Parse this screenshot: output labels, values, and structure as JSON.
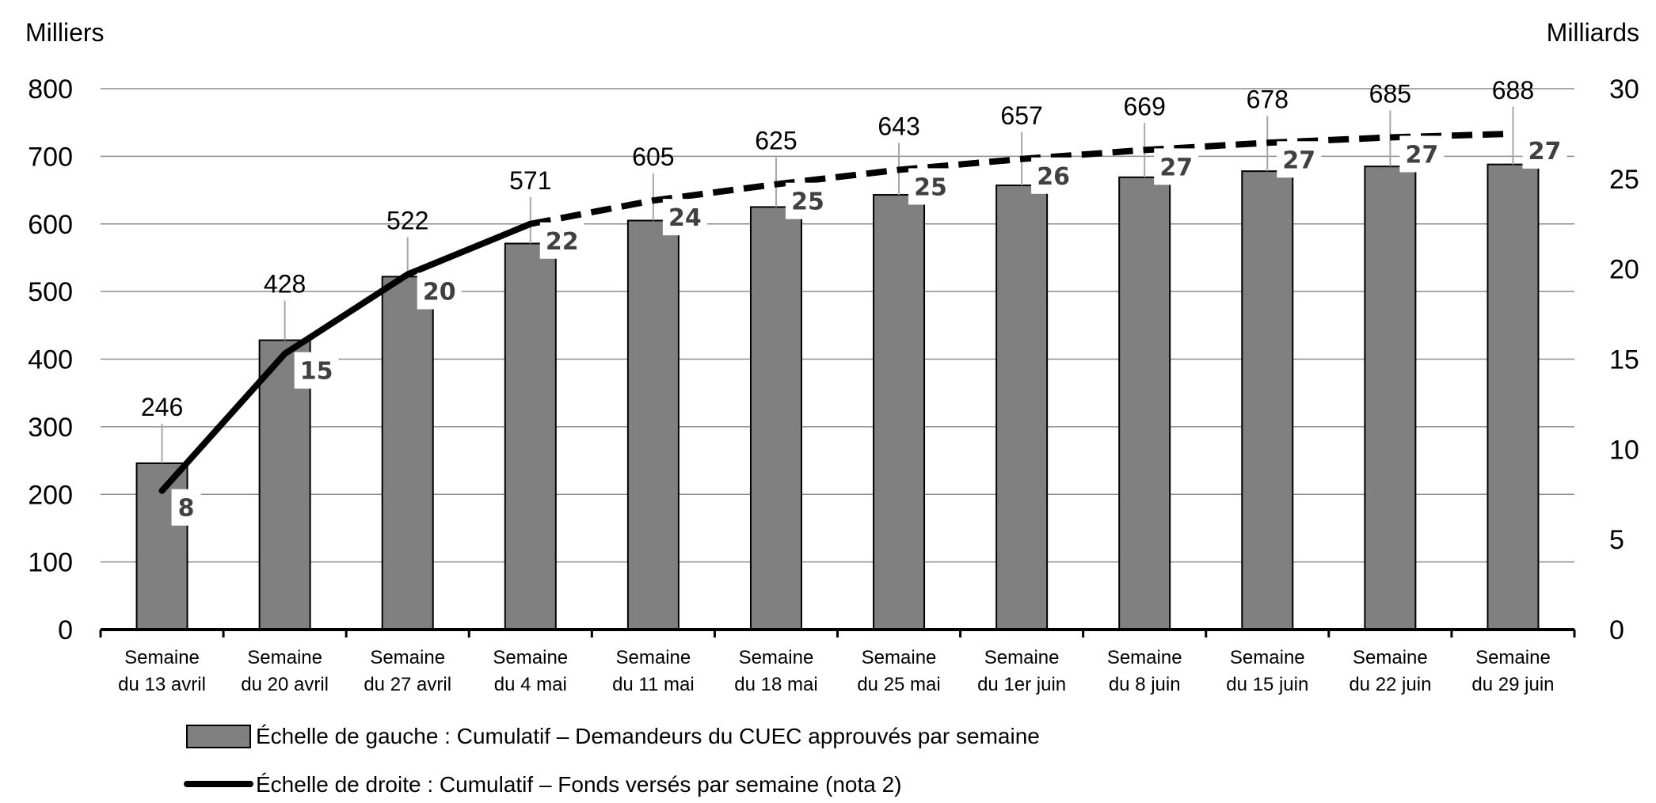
{
  "chart_data": {
    "type": "bar",
    "left_axis_title": "Milliers",
    "right_axis_title": "Milliards",
    "left_ylim": [
      0,
      800
    ],
    "left_ticks": [
      "0",
      "100",
      "200",
      "300",
      "400",
      "500",
      "600",
      "700",
      "800"
    ],
    "right_ylim": [
      0,
      30
    ],
    "right_ticks": [
      "0",
      "5",
      "10",
      "15",
      "20",
      "25",
      "30"
    ],
    "grid": true,
    "categories": [
      [
        "Semaine",
        "du 13 avril"
      ],
      [
        "Semaine",
        "du 20 avril"
      ],
      [
        "Semaine",
        "du 27 avril"
      ],
      [
        "Semaine",
        "du 4 mai"
      ],
      [
        "Semaine",
        "du 11 mai"
      ],
      [
        "Semaine",
        "du 18 mai"
      ],
      [
        "Semaine",
        "du 25 mai"
      ],
      [
        "Semaine",
        "du 1er juin"
      ],
      [
        "Semaine",
        "du 8 juin"
      ],
      [
        "Semaine",
        "du 15 juin"
      ],
      [
        "Semaine",
        "du 22 juin"
      ],
      [
        "Semaine",
        "du 29 juin"
      ]
    ],
    "series": [
      {
        "name": "Échelle de gauche : Cumulatif – Demandeurs du CUEC approuvés par semaine",
        "type": "bar",
        "axis": "left",
        "color": "#808080",
        "values": [
          246,
          428,
          522,
          571,
          605,
          625,
          643,
          657,
          669,
          678,
          685,
          688
        ]
      },
      {
        "name": "Échelle de droite : Cumulatif – Fonds versés par semaine (nota 2)",
        "type": "line",
        "axis": "right",
        "color": "#000000",
        "values": [
          7.7,
          15.3,
          19.7,
          22.5,
          23.8,
          24.7,
          25.5,
          26.1,
          26.6,
          27.0,
          27.3,
          27.5
        ],
        "labels": [
          "8",
          "15",
          "20",
          "22",
          "24",
          "25",
          "25",
          "26",
          "27",
          "27",
          "27",
          "27"
        ]
      }
    ],
    "legend_position": "bottom"
  }
}
